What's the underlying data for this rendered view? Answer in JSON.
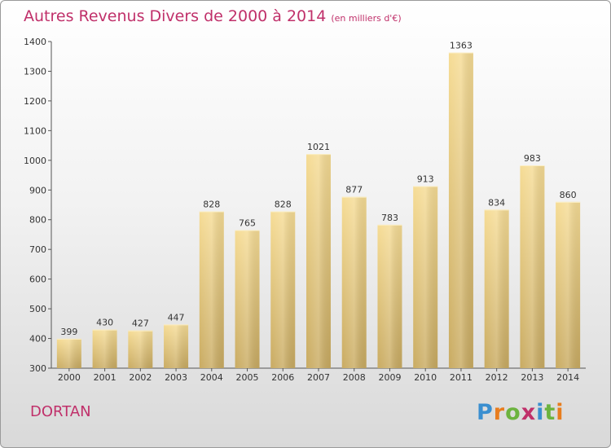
{
  "header": {
    "title": "Autres Revenus Divers de 2000 à 2014",
    "unit": "(en milliers d'€)"
  },
  "location": "DORTAN",
  "logo": {
    "letters": [
      "P",
      "r",
      "o",
      "x",
      "i",
      "t",
      "i"
    ],
    "colors": [
      "#3a8fd0",
      "#e87d1e",
      "#6cb33f",
      "#c0306a",
      "#3a8fd0",
      "#6cb33f",
      "#e87d1e"
    ]
  },
  "chart_data": {
    "type": "bar",
    "categories": [
      "2000",
      "2001",
      "2002",
      "2003",
      "2004",
      "2005",
      "2006",
      "2007",
      "2008",
      "2009",
      "2010",
      "2011",
      "2012",
      "2013",
      "2014"
    ],
    "values": [
      399,
      430,
      427,
      447,
      828,
      765,
      828,
      1021,
      877,
      783,
      913,
      1363,
      834,
      983,
      860
    ],
    "ylim": [
      300,
      1400
    ],
    "yticks": [
      300,
      400,
      500,
      600,
      700,
      800,
      900,
      1000,
      1100,
      1200,
      1300,
      1400
    ],
    "grid": false,
    "bar_color": "#e8c97e"
  }
}
